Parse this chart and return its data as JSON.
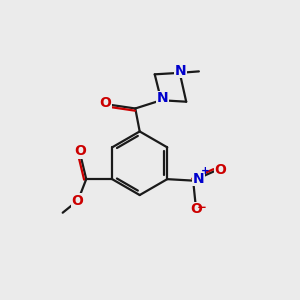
{
  "background_color": "#ebebeb",
  "bond_color": "#1a1a1a",
  "oxygen_color": "#cc0000",
  "nitrogen_color": "#0000cc",
  "line_width": 1.6,
  "figsize": [
    3.0,
    3.0
  ],
  "dpi": 100,
  "xlim": [
    0,
    10
  ],
  "ylim": [
    0,
    10
  ]
}
